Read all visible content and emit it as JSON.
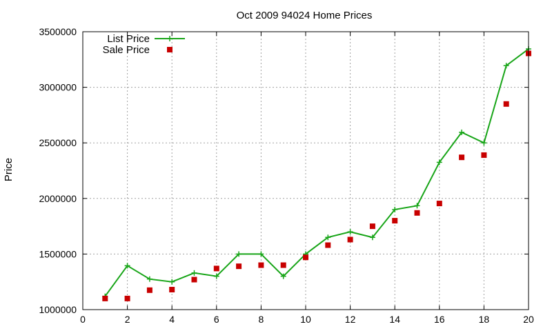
{
  "colors": {
    "list_price": "#18a518",
    "sale_price": "#c80000",
    "grid": "#a0a0a0",
    "frame": "#000000",
    "background": "#ffffff"
  },
  "chart_data": {
    "type": "line",
    "title": "Oct 2009 94024 Home Prices",
    "xlabel": "",
    "ylabel": "Price",
    "xlim": [
      0,
      20
    ],
    "ylim": [
      1000000,
      3500000
    ],
    "xticks": [
      "0",
      "2",
      "4",
      "6",
      "8",
      "10",
      "12",
      "14",
      "16",
      "18",
      "20"
    ],
    "yticks": [
      "1000000",
      "1500000",
      "2000000",
      "2500000",
      "3000000",
      "3500000"
    ],
    "grid": true,
    "legend_position": "top-left",
    "x": [
      1,
      2,
      3,
      4,
      5,
      6,
      7,
      8,
      9,
      10,
      11,
      12,
      13,
      14,
      15,
      16,
      17,
      18,
      19,
      20
    ],
    "series": [
      {
        "name": "List Price",
        "style": "line+cross",
        "values": [
          1120000,
          1395000,
          1275000,
          1250000,
          1330000,
          1300000,
          1500000,
          1500000,
          1300000,
          1500000,
          1650000,
          1700000,
          1650000,
          1900000,
          1935000,
          2325000,
          2595000,
          2500000,
          3195000,
          3345000
        ]
      },
      {
        "name": "Sale Price",
        "style": "square",
        "values": [
          1100000,
          1100000,
          1175000,
          1180000,
          1270000,
          1370000,
          1390000,
          1400000,
          1400000,
          1470000,
          1580000,
          1630000,
          1750000,
          1800000,
          1870000,
          1955000,
          2370000,
          2390000,
          2850000,
          3305000
        ]
      }
    ]
  }
}
